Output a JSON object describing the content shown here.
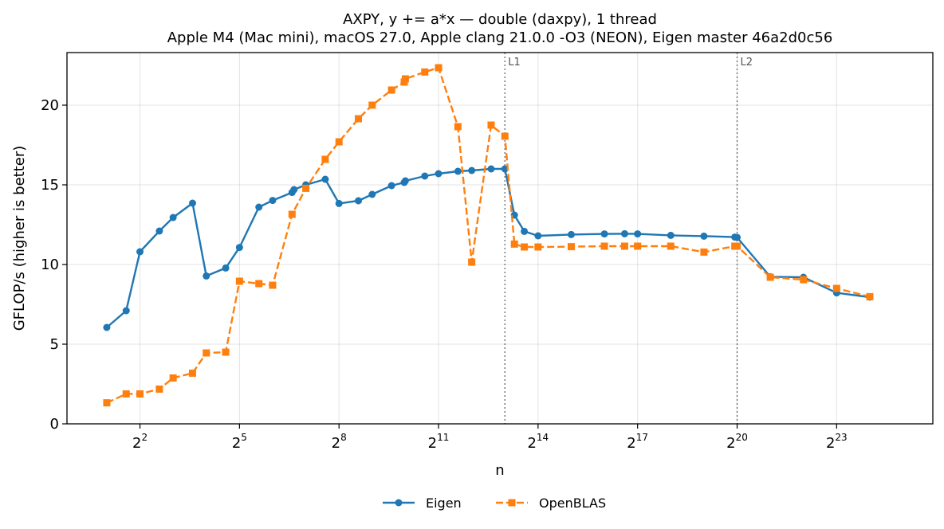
{
  "chart_data": {
    "type": "line",
    "title": "AXPY, y += a*x — double (daxpy), 1 thread",
    "subtitle": "Apple M4 (Mac mini), macOS 27.0, Apple clang 21.0.0 -O3 (NEON), Eigen master 46a2d0c56",
    "xlabel": "n",
    "ylabel": "GFLOP/s (higher is better)",
    "x_scale": "log2",
    "x_tick_exponents": [
      2,
      5,
      8,
      11,
      14,
      17,
      20,
      23
    ],
    "x_tick_base": "2",
    "xlim_exp": [
      -0.2,
      25.9
    ],
    "ylim": [
      0,
      23.3
    ],
    "y_ticks": [
      0,
      5,
      10,
      15,
      20
    ],
    "grid": true,
    "legend_position": "bottom-center",
    "annotations": [
      {
        "label": "L1",
        "x": 8192
      },
      {
        "label": "L2",
        "x": 1048576
      }
    ],
    "series": [
      {
        "name": "Eigen",
        "color": "#1f77b4",
        "marker": "circle",
        "line_style": "solid",
        "x": [
          2,
          3,
          4,
          6,
          8,
          12,
          16,
          24,
          32,
          48,
          64,
          96,
          100,
          128,
          192,
          256,
          384,
          512,
          768,
          1000,
          1024,
          1536,
          2048,
          3072,
          4096,
          6144,
          8192,
          10000,
          12288,
          16384,
          32768,
          65536,
          100000,
          131072,
          262144,
          524288,
          1000000,
          1048576,
          2097152,
          4194304,
          8388608,
          16777216
        ],
        "values": [
          6.05,
          7.1,
          10.8,
          12.1,
          12.95,
          13.85,
          9.28,
          9.78,
          11.07,
          13.6,
          14.02,
          14.52,
          14.7,
          15.0,
          15.35,
          13.83,
          14.0,
          14.4,
          14.95,
          15.15,
          15.25,
          15.55,
          15.7,
          15.85,
          15.9,
          16.0,
          16.0,
          13.1,
          12.08,
          11.8,
          11.88,
          11.92,
          11.93,
          11.92,
          11.83,
          11.78,
          11.72,
          11.7,
          9.23,
          9.2,
          8.22,
          7.95
        ]
      },
      {
        "name": "OpenBLAS",
        "color": "#ff7f0e",
        "marker": "square",
        "line_style": "dashed",
        "x": [
          2,
          3,
          4,
          6,
          8,
          12,
          16,
          24,
          32,
          48,
          64,
          96,
          128,
          192,
          256,
          384,
          512,
          768,
          1000,
          1024,
          1536,
          2048,
          3072,
          4096,
          6144,
          8192,
          10000,
          12288,
          16384,
          32768,
          65536,
          100000,
          131072,
          262144,
          524288,
          1000000,
          1048576,
          2097152,
          4194304,
          8388608,
          16777216
        ],
        "values": [
          1.32,
          1.88,
          1.88,
          2.18,
          2.88,
          3.18,
          4.45,
          4.5,
          8.95,
          8.8,
          8.7,
          13.15,
          14.78,
          16.6,
          17.7,
          19.15,
          20.0,
          20.95,
          21.45,
          21.65,
          22.08,
          22.35,
          18.65,
          10.15,
          18.75,
          18.05,
          11.28,
          11.1,
          11.1,
          11.12,
          11.15,
          11.15,
          11.15,
          11.15,
          10.78,
          11.15,
          11.15,
          9.2,
          9.05,
          8.5,
          7.98
        ]
      }
    ]
  }
}
